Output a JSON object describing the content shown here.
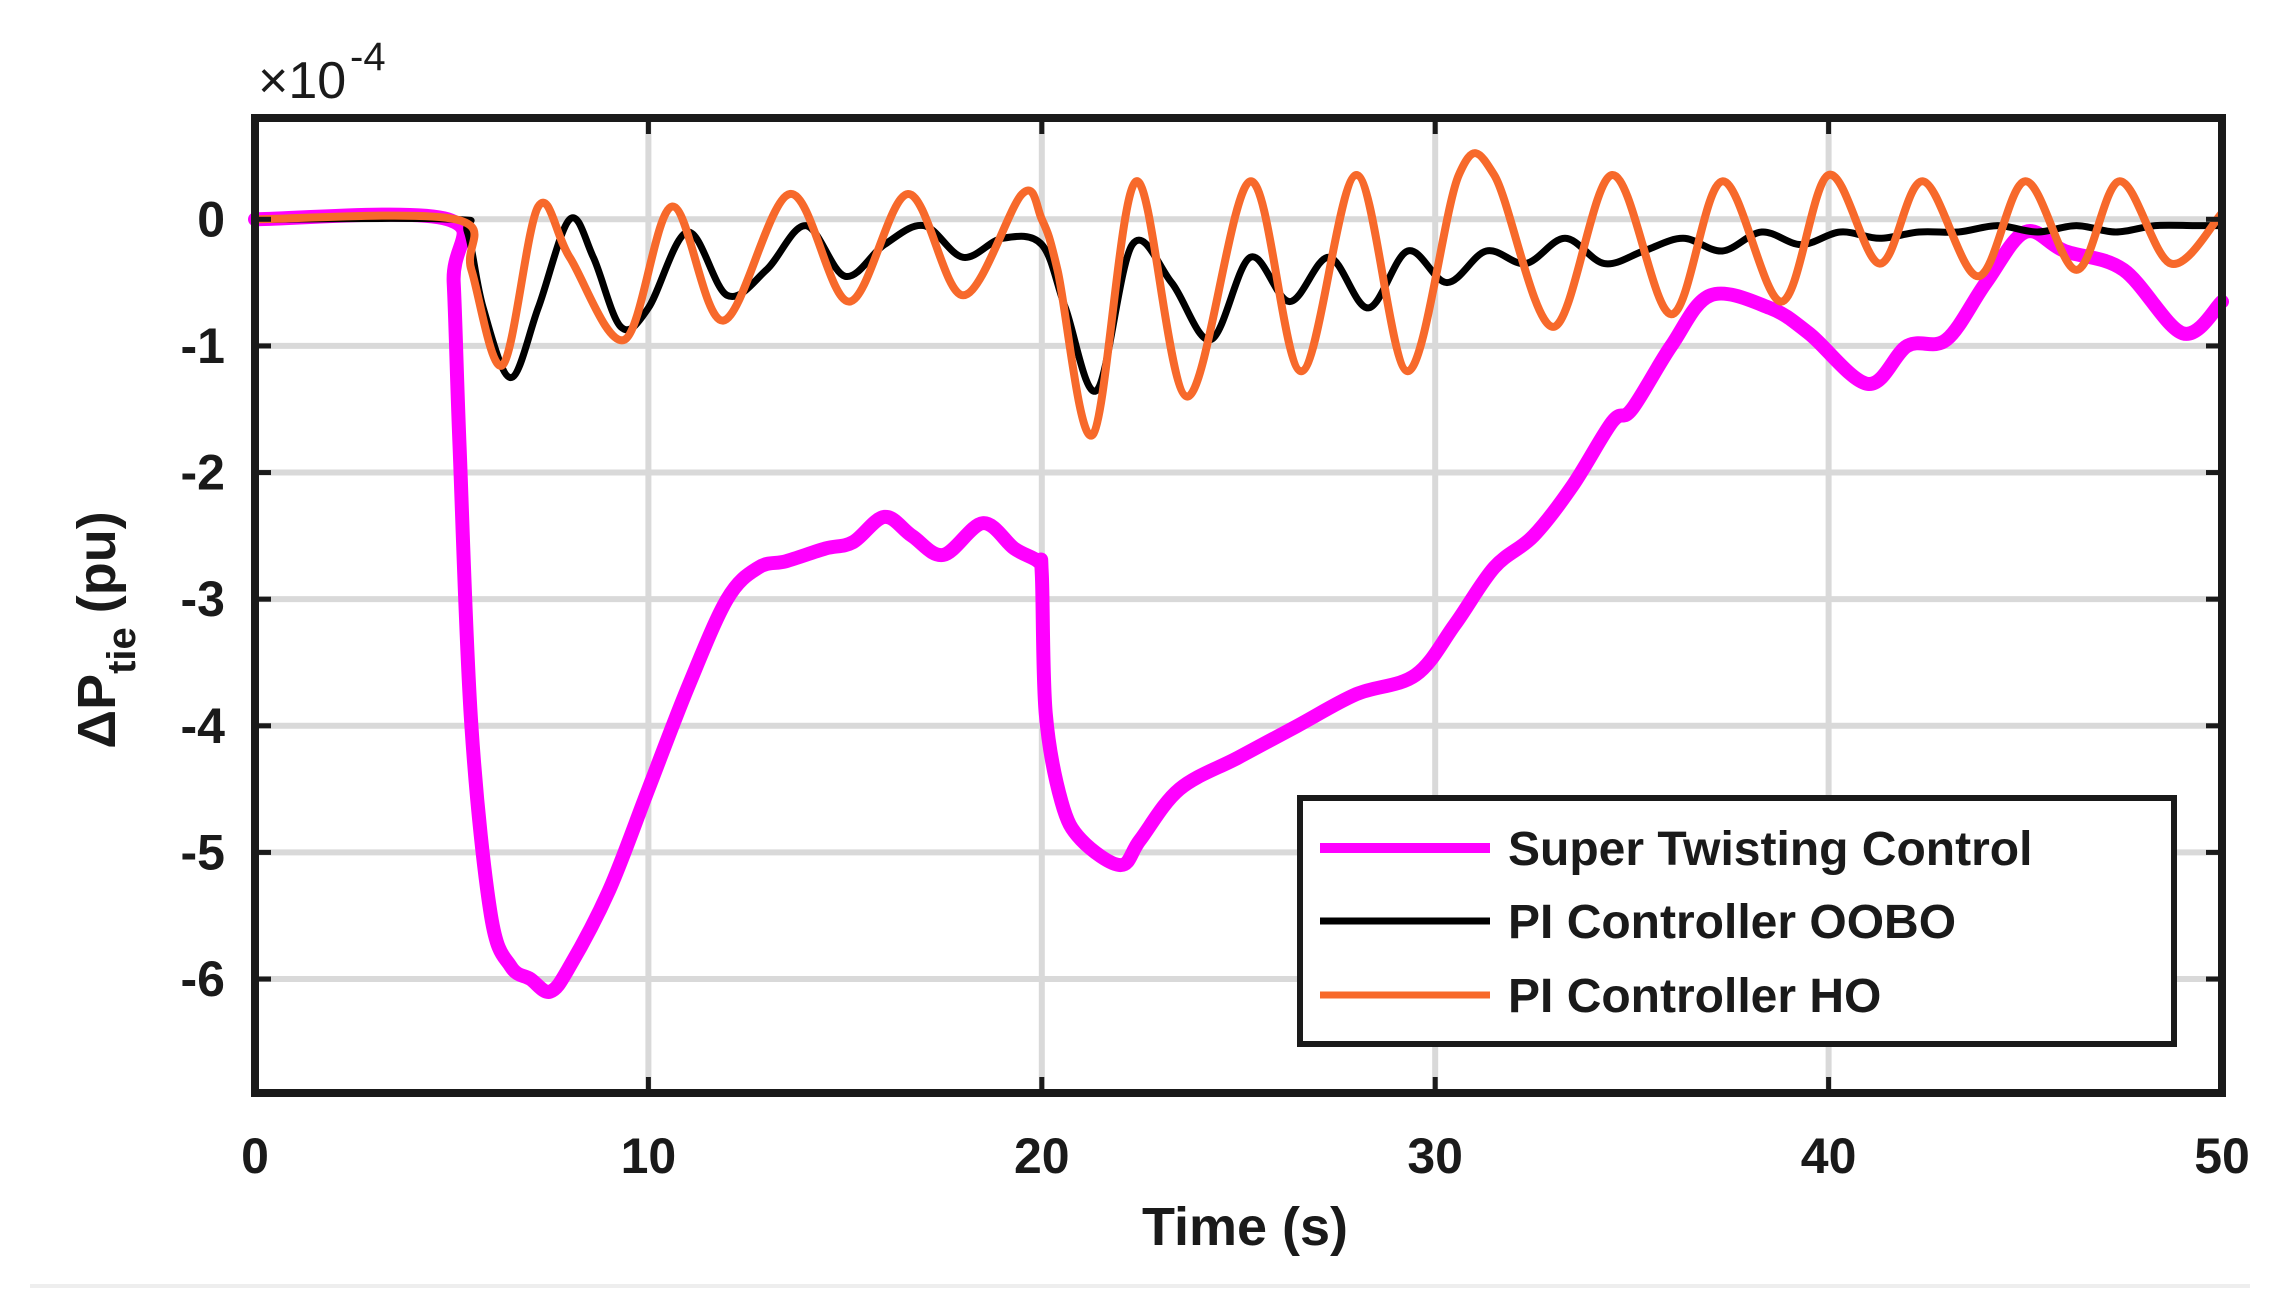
{
  "chart_data": {
    "type": "line",
    "title": "",
    "xlabel": "Time (s)",
    "ylabel_main": "ΔP",
    "ylabel_sub": "tie",
    "ylabel_unit": "(pu)",
    "scale_multiplier": "×10",
    "scale_exponent": "-4",
    "xlim": [
      0,
      50
    ],
    "ylim": [
      -6.9,
      0.8
    ],
    "xticks": [
      0,
      10,
      20,
      30,
      40,
      50
    ],
    "xtick_labels": [
      "0",
      "10",
      "20",
      "30",
      "40",
      "50"
    ],
    "yticks": [
      0,
      -1,
      -2,
      -3,
      -4,
      -5,
      -6
    ],
    "ytick_labels": [
      "0",
      "-1",
      "-2",
      "-3",
      "-4",
      "-5",
      "-6"
    ],
    "grid": true,
    "legend_position": "bottom-right",
    "series": [
      {
        "name": "Super Twisting Control",
        "color": "#ff00ff",
        "x": [
          0,
          4.9,
          5.05,
          5.2,
          5.5,
          6.0,
          6.5,
          7.0,
          7.5,
          8.0,
          9.0,
          10.0,
          11.0,
          12.0,
          12.8,
          13.5,
          14.5,
          15.2,
          16.0,
          16.7,
          17.5,
          18.5,
          19.3,
          19.9,
          20.0,
          20.1,
          20.5,
          21.0,
          22.0,
          22.5,
          23.5,
          25.0,
          26.5,
          28.0,
          29.5,
          30.5,
          31.5,
          32.5,
          33.5,
          34.5,
          35.0,
          36.0,
          37.0,
          38.5,
          39.5,
          41.0,
          42.0,
          43.0,
          44.0,
          45.0,
          46.0,
          47.5,
          49.0,
          50.0
        ],
        "y": [
          0,
          0,
          -0.5,
          -1.8,
          -4.0,
          -5.5,
          -5.9,
          -6.0,
          -6.1,
          -5.9,
          -5.3,
          -4.5,
          -3.7,
          -3.0,
          -2.75,
          -2.7,
          -2.6,
          -2.55,
          -2.35,
          -2.5,
          -2.65,
          -2.4,
          -2.6,
          -2.7,
          -2.8,
          -3.9,
          -4.6,
          -4.9,
          -5.1,
          -4.9,
          -4.5,
          -4.25,
          -4.0,
          -3.75,
          -3.6,
          -3.2,
          -2.75,
          -2.5,
          -2.1,
          -1.6,
          -1.5,
          -1.0,
          -0.6,
          -0.7,
          -0.9,
          -1.3,
          -1.0,
          -0.95,
          -0.5,
          -0.1,
          -0.25,
          -0.4,
          -0.9,
          -0.65
        ]
      },
      {
        "name": "PI Controller OOBO",
        "color": "#000000",
        "x": [
          0,
          5.0,
          5.4,
          5.8,
          6.5,
          7.2,
          8.0,
          8.6,
          9.3,
          10.0,
          11.0,
          12.0,
          13.0,
          14.0,
          15.0,
          16.0,
          17.0,
          18.0,
          19.0,
          20.0,
          20.6,
          21.4,
          22.3,
          23.3,
          24.3,
          25.3,
          26.3,
          27.3,
          28.3,
          29.3,
          30.3,
          31.3,
          32.3,
          33.3,
          34.3,
          35.3,
          36.3,
          37.3,
          38.3,
          39.3,
          40.3,
          41.3,
          42.3,
          43.3,
          44.3,
          45.3,
          46.3,
          47.3,
          48.3,
          49.3,
          50.0
        ],
        "y": [
          0,
          0,
          -0.1,
          -0.7,
          -1.25,
          -0.7,
          0.0,
          -0.3,
          -0.85,
          -0.7,
          -0.1,
          -0.6,
          -0.4,
          -0.05,
          -0.45,
          -0.2,
          -0.05,
          -0.3,
          -0.15,
          -0.2,
          -0.7,
          -1.35,
          -0.2,
          -0.5,
          -0.95,
          -0.3,
          -0.65,
          -0.3,
          -0.7,
          -0.25,
          -0.5,
          -0.25,
          -0.35,
          -0.15,
          -0.35,
          -0.25,
          -0.15,
          -0.25,
          -0.1,
          -0.2,
          -0.1,
          -0.15,
          -0.1,
          -0.1,
          -0.05,
          -0.1,
          -0.05,
          -0.1,
          -0.05,
          -0.05,
          -0.05
        ]
      },
      {
        "name": "PI Controller HO",
        "color": "#f7692b",
        "x": [
          0,
          5.1,
          5.5,
          6.3,
          7.2,
          8.0,
          9.4,
          10.6,
          11.9,
          13.6,
          15.1,
          16.6,
          18.0,
          19.5,
          20.0,
          20.4,
          21.3,
          22.4,
          23.7,
          25.3,
          26.6,
          28.0,
          29.3,
          30.6,
          31.5,
          33.0,
          34.5,
          36.0,
          37.3,
          38.8,
          40.0,
          41.3,
          42.4,
          43.8,
          45.0,
          46.3,
          47.4,
          48.7,
          50.0
        ],
        "y": [
          0,
          0,
          -0.4,
          -1.15,
          0.1,
          -0.3,
          -0.95,
          0.1,
          -0.8,
          0.2,
          -0.65,
          0.2,
          -0.6,
          0.2,
          0.0,
          -0.4,
          -1.7,
          0.3,
          -1.4,
          0.3,
          -1.2,
          0.35,
          -1.2,
          0.35,
          0.35,
          -0.85,
          0.35,
          -0.75,
          0.3,
          -0.65,
          0.35,
          -0.35,
          0.3,
          -0.45,
          0.3,
          -0.4,
          0.3,
          -0.35,
          0.05
        ]
      }
    ]
  }
}
